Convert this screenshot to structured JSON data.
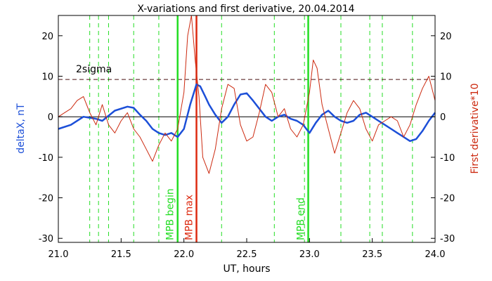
{
  "chart_data": {
    "type": "line",
    "title": "X-variations and first derivative, 20.04.2014",
    "xlabel": "UT, hours",
    "ylabel_left": "deltaX, nT",
    "ylabel_right": "First derivative*10",
    "xlim": [
      21.0,
      24.0
    ],
    "ylim": [
      -31,
      25
    ],
    "x_ticks": [
      "21.0",
      "21.5",
      "22.0",
      "22.5",
      "23.0",
      "23.5",
      "24.0"
    ],
    "y_ticks": [
      "20",
      "10",
      "0",
      "-10",
      "-20",
      "-30"
    ],
    "grid": false,
    "threshold": {
      "label": "2sigma",
      "value": 9.2
    },
    "zero_line": 0,
    "series": [
      {
        "name": "deltaX, nT",
        "color": "#1c4fd8",
        "x": [
          21.0,
          21.1,
          21.2,
          21.3,
          21.35,
          21.45,
          21.55,
          21.6,
          21.65,
          21.7,
          21.75,
          21.8,
          21.85,
          21.9,
          21.95,
          22.0,
          22.05,
          22.1,
          22.13,
          22.17,
          22.2,
          22.25,
          22.3,
          22.35,
          22.4,
          22.45,
          22.5,
          22.55,
          22.6,
          22.65,
          22.7,
          22.75,
          22.8,
          22.85,
          22.9,
          22.95,
          23.0,
          23.05,
          23.1,
          23.15,
          23.2,
          23.25,
          23.3,
          23.35,
          23.4,
          23.45,
          23.5,
          23.55,
          23.6,
          23.65,
          23.7,
          23.75,
          23.8,
          23.85,
          23.9,
          23.95,
          24.0
        ],
        "y": [
          -3,
          -2,
          0,
          -0.5,
          -1,
          1.5,
          2.5,
          2.2,
          0.5,
          -1,
          -3,
          -4,
          -4.5,
          -4,
          -5,
          -3,
          3,
          8,
          7.5,
          5,
          3,
          0.5,
          -1.5,
          0,
          3,
          5.5,
          5.8,
          4,
          2,
          0,
          -1,
          0,
          0.5,
          -0.5,
          -1,
          -2,
          -4,
          -1.5,
          0.5,
          1.5,
          0,
          -1,
          -1.5,
          -1,
          0.5,
          1,
          0,
          -1,
          -2,
          -3,
          -4,
          -5,
          -6,
          -5.5,
          -3.5,
          -1,
          1
        ]
      },
      {
        "name": "First derivative*10",
        "color": "#cc2a10",
        "x": [
          21.0,
          21.05,
          21.1,
          21.15,
          21.2,
          21.25,
          21.3,
          21.35,
          21.4,
          21.45,
          21.5,
          21.55,
          21.6,
          21.65,
          21.7,
          21.75,
          21.8,
          21.85,
          21.9,
          21.95,
          22.0,
          22.03,
          22.06,
          22.09,
          22.12,
          22.15,
          22.2,
          22.25,
          22.3,
          22.35,
          22.4,
          22.45,
          22.5,
          22.55,
          22.6,
          22.65,
          22.7,
          22.75,
          22.8,
          22.85,
          22.9,
          22.95,
          23.0,
          23.03,
          23.06,
          23.1,
          23.15,
          23.2,
          23.25,
          23.3,
          23.35,
          23.4,
          23.45,
          23.5,
          23.55,
          23.6,
          23.65,
          23.7,
          23.75,
          23.8,
          23.85,
          23.9,
          23.95,
          24.0
        ],
        "y": [
          0,
          1,
          2,
          4,
          5,
          1,
          -2,
          3,
          -2,
          -4,
          -1,
          1,
          -3,
          -5,
          -8,
          -11,
          -7,
          -4,
          -6,
          -3,
          6,
          20,
          25,
          14,
          5,
          -10,
          -14,
          -8,
          2,
          8,
          7,
          -2,
          -6,
          -5,
          1,
          8,
          6,
          0,
          2,
          -3,
          -5,
          -2,
          6,
          14,
          12,
          3,
          -3,
          -9,
          -4,
          1,
          4,
          2,
          -3,
          -6,
          -2,
          -1,
          0,
          -1,
          -5,
          -2,
          3,
          7,
          10,
          4
        ]
      }
    ],
    "markers": [
      {
        "label": "MPB begin",
        "x": 21.95,
        "color": "#22dd22"
      },
      {
        "label": "MPB max",
        "x": 22.1,
        "color": "#dd2a10"
      },
      {
        "label": "MPB end",
        "x": 22.99,
        "color": "#22dd22"
      }
    ],
    "dashed_verticals": [
      21.25,
      21.32,
      21.4,
      21.6,
      21.8,
      22.3,
      22.72,
      22.96,
      23.25,
      23.48,
      23.58,
      23.82
    ]
  }
}
